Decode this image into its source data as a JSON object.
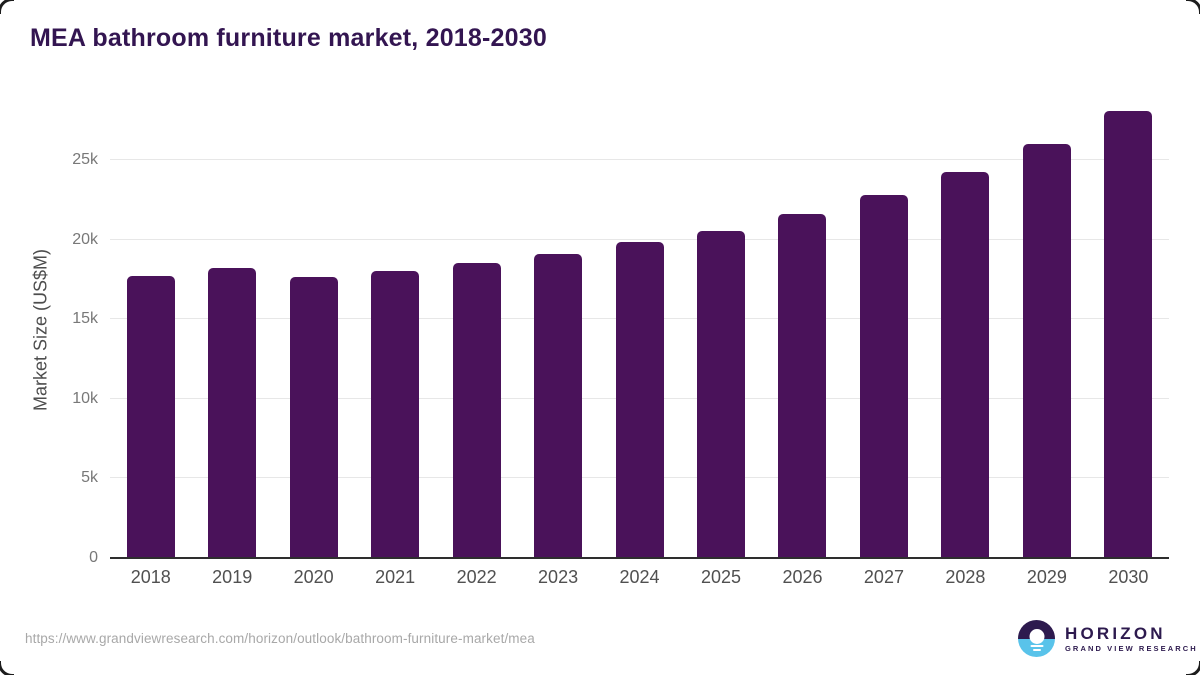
{
  "title": "MEA bathroom furniture market, 2018-2030",
  "chart_data": {
    "type": "bar",
    "title": "MEA bathroom furniture market, 2018-2030",
    "categories": [
      "2018",
      "2019",
      "2020",
      "2021",
      "2022",
      "2023",
      "2024",
      "2025",
      "2026",
      "2027",
      "2028",
      "2029",
      "2030"
    ],
    "values": [
      17740,
      18230,
      17650,
      18020,
      18530,
      19070,
      19820,
      20560,
      21600,
      22790,
      24240,
      26010,
      28080
    ],
    "xlabel": "",
    "ylabel": "Market Size (US$M)",
    "ylim": [
      0,
      28800
    ],
    "yticks": [
      {
        "value": 0,
        "label": "0"
      },
      {
        "value": 5000,
        "label": "5k"
      },
      {
        "value": 10000,
        "label": "10k"
      },
      {
        "value": 15000,
        "label": "15k"
      },
      {
        "value": 20000,
        "label": "20k"
      },
      {
        "value": 25000,
        "label": "25k"
      }
    ],
    "grid": "horizontal",
    "legend": "none",
    "bar_color": "#4a125a"
  },
  "footer": {
    "source_url": "https://www.grandviewresearch.com/horizon/outlook/bathroom-furniture-market/mea",
    "logo": {
      "brand": "HORIZON",
      "subtitle": "GRAND VIEW RESEARCH",
      "dark_color": "#2d1a4e",
      "blue_color": "#59c3ea"
    }
  }
}
